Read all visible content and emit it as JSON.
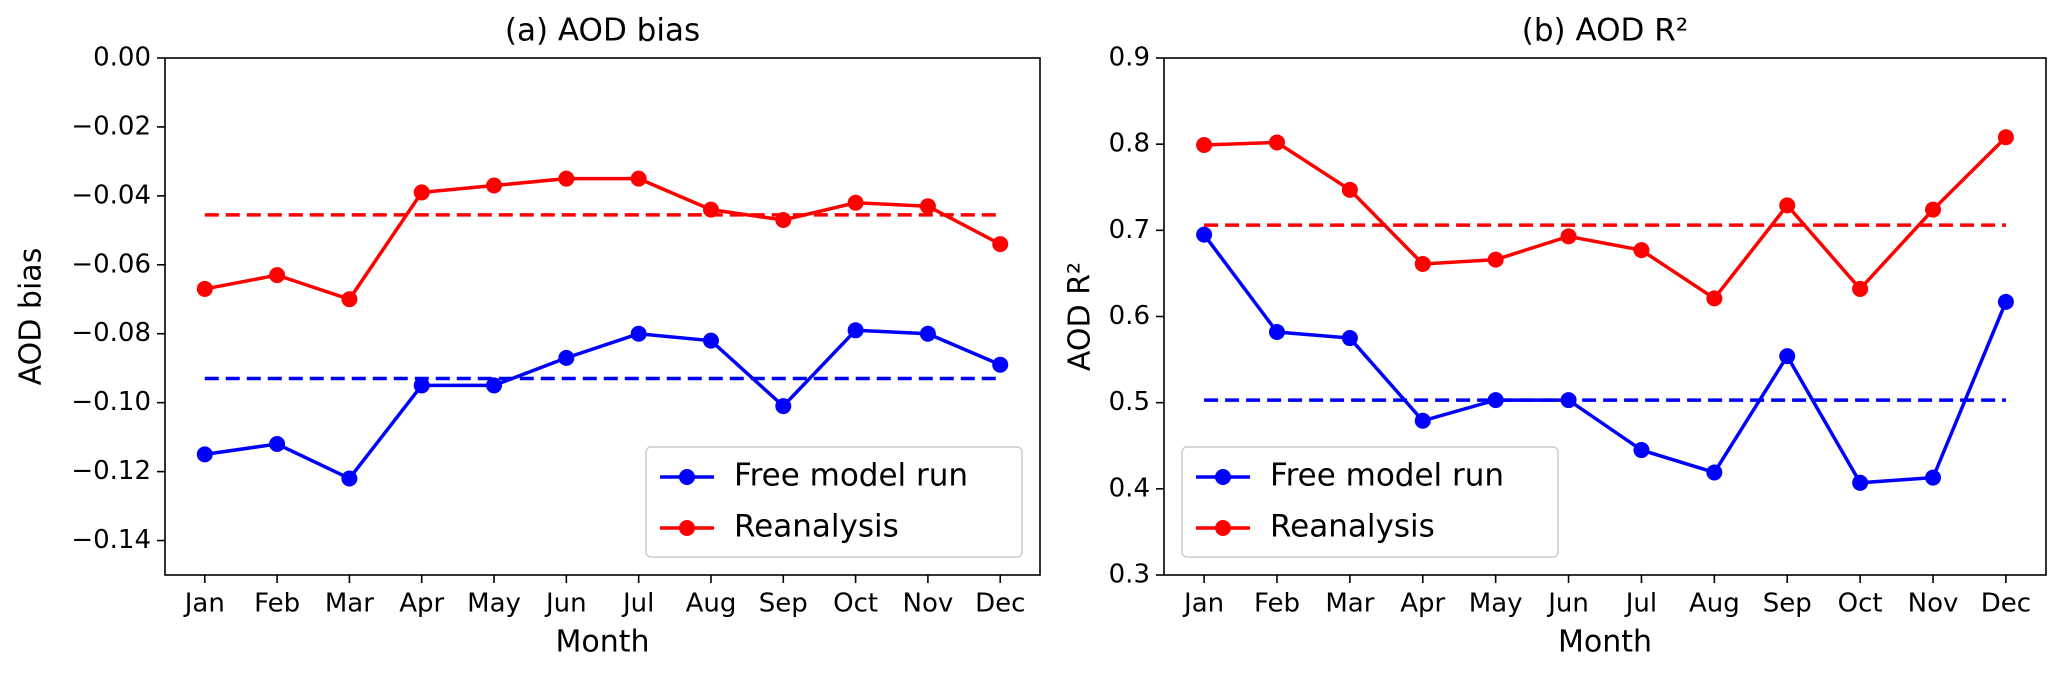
{
  "chart_data": [
    {
      "type": "line",
      "title": "(a) AOD bias",
      "xlabel": "Month",
      "ylabel": "AOD bias",
      "categories": [
        "Jan",
        "Feb",
        "Mar",
        "Apr",
        "May",
        "Jun",
        "Jul",
        "Aug",
        "Sep",
        "Oct",
        "Nov",
        "Dec"
      ],
      "series": [
        {
          "name": "Free model run",
          "color": "#0000ff",
          "mean": -0.093,
          "values": [
            -0.115,
            -0.112,
            -0.122,
            -0.095,
            -0.095,
            -0.087,
            -0.08,
            -0.082,
            -0.101,
            -0.079,
            -0.08,
            -0.089
          ]
        },
        {
          "name": "Reanalysis",
          "color": "#ff0000",
          "mean": -0.0455,
          "values": [
            -0.067,
            -0.063,
            -0.07,
            -0.039,
            -0.037,
            -0.035,
            -0.035,
            -0.044,
            -0.047,
            -0.042,
            -0.043,
            -0.054
          ]
        }
      ],
      "ylim": [
        -0.15,
        0.0
      ],
      "yticks": [
        {
          "value": 0.0,
          "label": "0.00"
        },
        {
          "value": -0.02,
          "label": "−0.02"
        },
        {
          "value": -0.04,
          "label": "−0.04"
        },
        {
          "value": -0.06,
          "label": "−0.06"
        },
        {
          "value": -0.08,
          "label": "−0.08"
        },
        {
          "value": -0.1,
          "label": "−0.10"
        },
        {
          "value": -0.12,
          "label": "−0.12"
        },
        {
          "value": -0.14,
          "label": "−0.14"
        }
      ],
      "legend": "lower right"
    },
    {
      "type": "line",
      "title": "(b) AOD R²",
      "xlabel": "Month",
      "ylabel": "AOD R²",
      "categories": [
        "Jan",
        "Feb",
        "Mar",
        "Apr",
        "May",
        "Jun",
        "Jul",
        "Aug",
        "Sep",
        "Oct",
        "Nov",
        "Dec"
      ],
      "series": [
        {
          "name": "Free model run",
          "color": "#0000ff",
          "mean": 0.503,
          "values": [
            0.695,
            0.582,
            0.575,
            0.479,
            0.503,
            0.503,
            0.445,
            0.419,
            0.554,
            0.407,
            0.413,
            0.617
          ]
        },
        {
          "name": "Reanalysis",
          "color": "#ff0000",
          "mean": 0.706,
          "values": [
            0.799,
            0.802,
            0.747,
            0.661,
            0.666,
            0.693,
            0.677,
            0.621,
            0.729,
            0.632,
            0.724,
            0.808
          ]
        }
      ],
      "ylim": [
        0.3,
        0.9
      ],
      "yticks": [
        0.3,
        0.4,
        0.5,
        0.6,
        0.7,
        0.8,
        0.9
      ],
      "legend": "lower left"
    }
  ]
}
